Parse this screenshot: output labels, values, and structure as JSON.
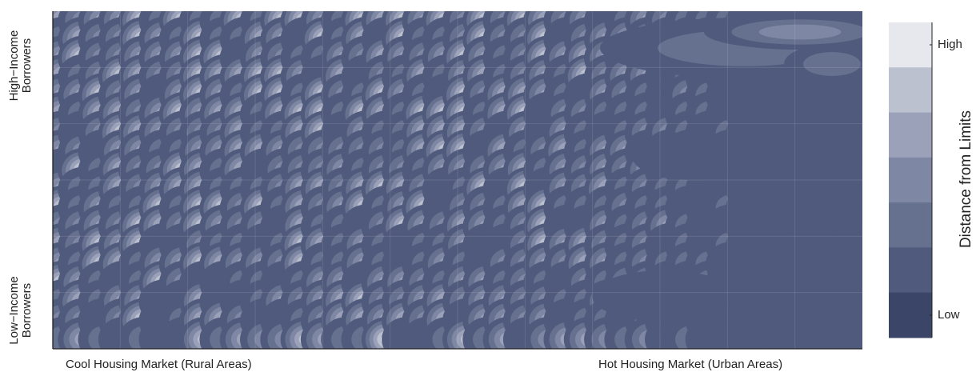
{
  "chart_data": {
    "type": "heatmap",
    "style": "filled-contour",
    "title": "",
    "xlabel": "",
    "ylabel": "",
    "x_axis_labels": {
      "left": "Cool Housing Market (Rural Areas)",
      "right": "Hot Housing Market (Urban Areas)"
    },
    "y_axis_labels": {
      "top_line1": "High−Income",
      "top_line2": "Borrowers",
      "bottom_line1": "Low−Income",
      "bottom_line2": "Borrowers"
    },
    "colorbar": {
      "title": "Distance from Limits",
      "high_label": "High",
      "low_label": "Low",
      "levels": 7,
      "colors": [
        "#3a4568",
        "#4f5a7c",
        "#66708f",
        "#7e87a3",
        "#9aa1b8",
        "#bcc1cf",
        "#e7e8ed"
      ]
    },
    "grid": true
  }
}
